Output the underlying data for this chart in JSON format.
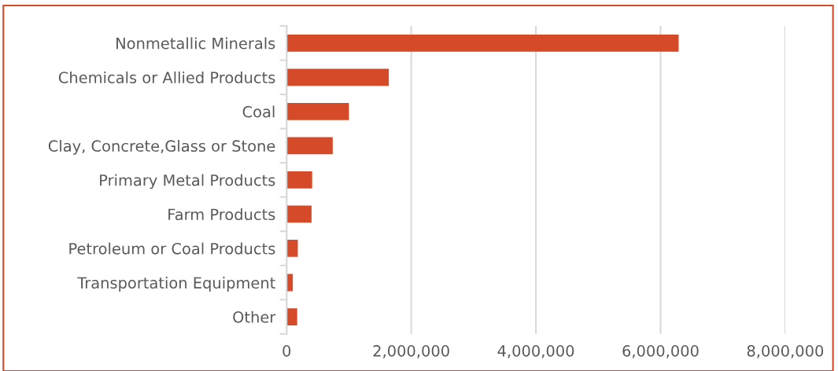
{
  "chart_data": {
    "type": "bar",
    "orientation": "horizontal",
    "categories": [
      "Nonmetallic Minerals",
      "Chemicals or Allied Products",
      "Coal",
      "Clay, Concrete,Glass or Stone",
      "Primary Metal Products",
      "Farm Products",
      "Petroleum or Coal Products",
      "Transportation Equipment",
      "Other"
    ],
    "values": [
      6290000,
      1640000,
      1000000,
      740000,
      410000,
      400000,
      180000,
      100000,
      170000
    ],
    "color": "#d54a29",
    "xlim": [
      0,
      8000000
    ],
    "xticks": [
      {
        "value": 0,
        "label": "0"
      },
      {
        "value": 2000000,
        "label": "2,000,000"
      },
      {
        "value": 4000000,
        "label": "4,000,000"
      },
      {
        "value": 6000000,
        "label": "6,000,000"
      },
      {
        "value": 8000000,
        "label": "8,000,000"
      }
    ],
    "grid": "x"
  }
}
